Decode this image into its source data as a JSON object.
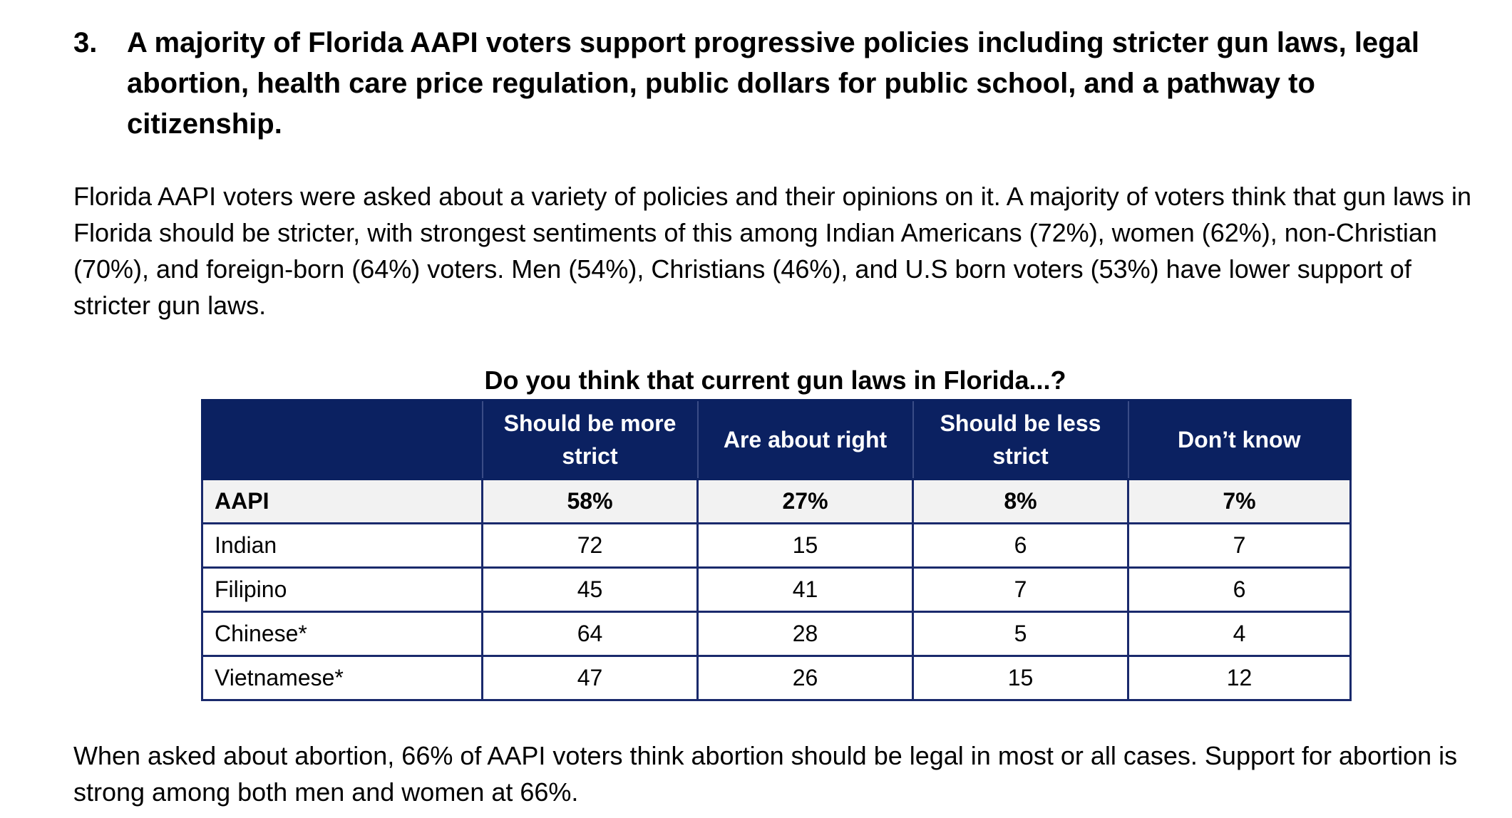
{
  "heading": {
    "number": "3.",
    "text": "A majority of Florida AAPI voters support progressive policies including stricter gun laws, legal abortion, health care price regulation, public dollars for public school, and a pathway to citizenship."
  },
  "paragraph1": "Florida AAPI voters were asked about a variety of policies and their opinions on it. A majority of voters think that gun laws in Florida should be stricter, with strongest sentiments of this among Indian Americans (72%), women (62%), non-Christian (70%), and foreign-born (64%) voters. Men (54%), Christians (46%), and U.S born voters (53%) have lower support of stricter gun laws.",
  "table": {
    "title": "Do you think that current gun laws in Florida...?",
    "headers": [
      "",
      "Should be more strict",
      "Are about right",
      "Should be less strict",
      "Don’t know"
    ],
    "rows": [
      [
        "AAPI",
        "58%",
        "27%",
        "8%",
        "7%"
      ],
      [
        "Indian",
        "72",
        "15",
        "6",
        "7"
      ],
      [
        "Filipino",
        "45",
        "41",
        "7",
        "6"
      ],
      [
        "Chinese*",
        "64",
        "28",
        "5",
        "4"
      ],
      [
        "Vietnamese*",
        "47",
        "26",
        "15",
        "12"
      ]
    ]
  },
  "paragraph2": "When asked about abortion, 66% of AAPI voters think abortion should be legal in most or all cases. Support for abortion is strong among both men and women at 66%."
}
